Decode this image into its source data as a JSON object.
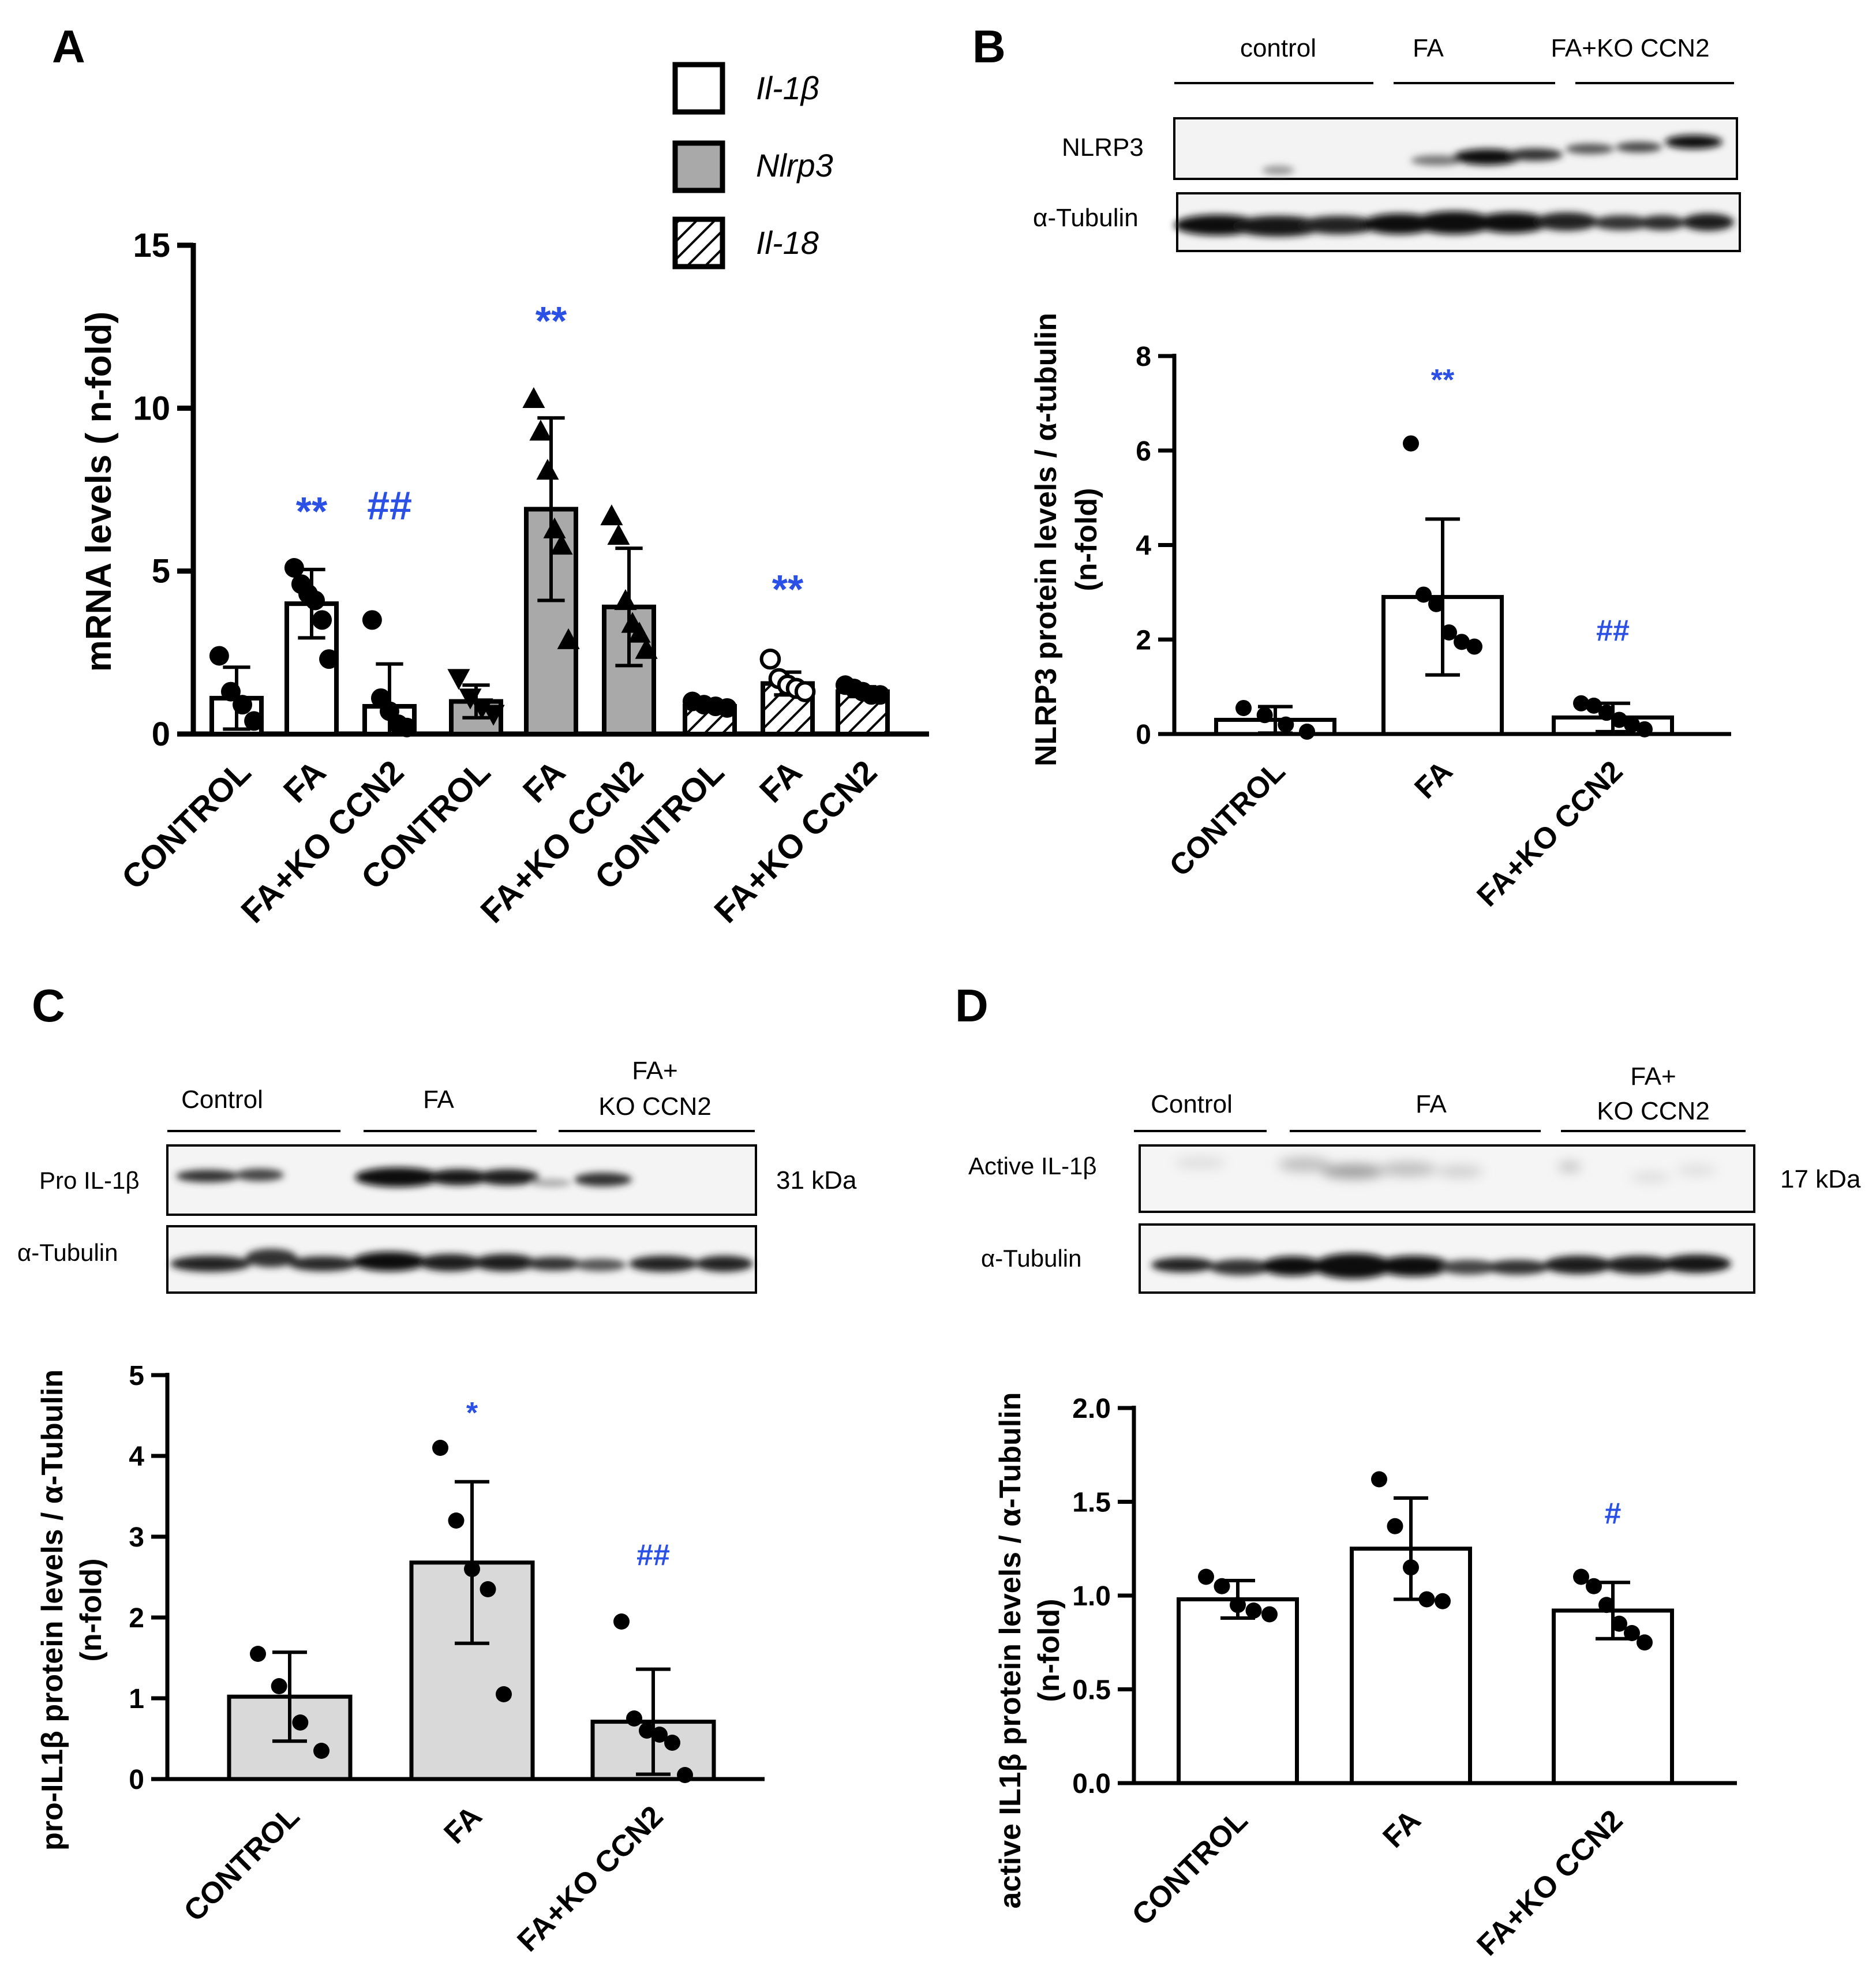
{
  "chart_data": [
    {
      "panel": "A",
      "type": "bar",
      "ylabel": "mRNA levels ( n-fold)",
      "ylim": [
        0,
        15
      ],
      "yticks": [
        "0",
        "5",
        "10",
        "15"
      ],
      "legend": [
        {
          "name": "Il-1β",
          "fill": "white"
        },
        {
          "name": "Nlrp3",
          "fill": "gray"
        },
        {
          "name": "Il-18",
          "fill": "hatched"
        }
      ],
      "categories": [
        "CONTROL",
        "FA",
        "FA+KO CCN2",
        "CONTROL",
        "FA",
        "FA+KO CCN2",
        "CONTROL",
        "FA",
        "FA+KO CCN2"
      ],
      "values": [
        1.1,
        4.0,
        0.85,
        1.0,
        6.9,
        3.9,
        0.85,
        1.55,
        1.3
      ],
      "errors": [
        0.95,
        1.05,
        1.3,
        0.5,
        2.8,
        1.8,
        0.1,
        0.35,
        0.15
      ],
      "points": [
        [
          2.4,
          1.3,
          0.9,
          0.4
        ],
        [
          5.1,
          4.6,
          4.3,
          4.1,
          3.5,
          2.3
        ],
        [
          3.5,
          1.1,
          0.7,
          0.3,
          0.2
        ],
        [
          1.7,
          1.1,
          0.8,
          0.6
        ],
        [
          10.3,
          9.3,
          8.1,
          6.3,
          5.8,
          2.9
        ],
        [
          6.7,
          6.1,
          4.1,
          3.4,
          3.1,
          2.6
        ],
        [
          1.0,
          0.9,
          0.85,
          0.8
        ],
        [
          2.3,
          1.7,
          1.5,
          1.4,
          1.3
        ],
        [
          1.5,
          1.4,
          1.3,
          1.2,
          1.2
        ]
      ],
      "series_of_bar": [
        0,
        0,
        0,
        1,
        1,
        1,
        2,
        2,
        2
      ],
      "marker_of_bar": [
        "circle",
        "circle",
        "circle",
        "triangle-down",
        "triangle",
        "triangle",
        "circle",
        "circle-open",
        "circle"
      ],
      "annotations": [
        {
          "bar": 1,
          "text": "**"
        },
        {
          "bar": 2,
          "text": "##"
        },
        {
          "bar": 4,
          "text": "**"
        },
        {
          "bar": 7,
          "text": "**"
        }
      ]
    },
    {
      "panel": "B",
      "type": "bar",
      "ylabel_line1": "NLRP3 protein levels / α-tubulin",
      "ylabel_line2": "(n-fold)",
      "ylim": [
        0,
        8
      ],
      "yticks": [
        "0",
        "2",
        "4",
        "6",
        "8"
      ],
      "categories": [
        "CONTROL",
        "FA",
        "FA+KO CCN2"
      ],
      "values": [
        0.3,
        2.9,
        0.35
      ],
      "errors": [
        0.28,
        1.65,
        0.3
      ],
      "points": [
        [
          0.55,
          0.4,
          0.2,
          0.05
        ],
        [
          6.15,
          2.95,
          2.75,
          2.15,
          1.95,
          1.85
        ],
        [
          0.65,
          0.6,
          0.45,
          0.3,
          0.2,
          0.1
        ]
      ],
      "annotations": [
        {
          "bar": 1,
          "text": "**"
        },
        {
          "bar": 2,
          "text": "##"
        }
      ]
    },
    {
      "panel": "C",
      "type": "bar",
      "ylabel_line1": "pro-IL1β protein levels / α-Tubulin",
      "ylabel_line2": "(n-fold)",
      "ylim": [
        0,
        5
      ],
      "yticks": [
        "0",
        "1",
        "2",
        "3",
        "4",
        "5"
      ],
      "categories": [
        "CONTROL",
        "FA",
        "FA+KO CCN2"
      ],
      "values": [
        1.02,
        2.68,
        0.71
      ],
      "errors": [
        0.55,
        1.0,
        0.65
      ],
      "points": [
        [
          1.55,
          1.15,
          0.7,
          0.35
        ],
        [
          4.1,
          3.2,
          2.6,
          2.35,
          1.05
        ],
        [
          1.95,
          0.75,
          0.6,
          0.55,
          0.45,
          0.05
        ]
      ],
      "annotations": [
        {
          "bar": 1,
          "text": "*"
        },
        {
          "bar": 2,
          "text": "##"
        }
      ]
    },
    {
      "panel": "D",
      "type": "bar",
      "ylabel_line1": "active IL1β protein levels / α-Tubulin",
      "ylabel_line2": "(n-fold)",
      "ylim": [
        0,
        2.0
      ],
      "yticks": [
        "0.0",
        "0.5",
        "1.0",
        "1.5",
        "2.0"
      ],
      "categories": [
        "CONTROL",
        "FA",
        "FA+KO CCN2"
      ],
      "values": [
        0.98,
        1.25,
        0.92
      ],
      "errors": [
        0.1,
        0.27,
        0.15
      ],
      "points": [
        [
          1.1,
          1.05,
          0.95,
          0.92,
          0.9
        ],
        [
          1.62,
          1.37,
          1.15,
          0.98,
          0.97
        ],
        [
          1.1,
          1.05,
          0.95,
          0.85,
          0.8,
          0.75
        ]
      ],
      "annotations": [
        {
          "bar": 2,
          "text": "#"
        }
      ]
    }
  ],
  "panel_labels": {
    "A": "A",
    "B": "B",
    "C": "C",
    "D": "D"
  },
  "blots": {
    "B": {
      "groups": [
        "control",
        "FA",
        "FA+KO CCN2"
      ],
      "rows": [
        "NLRP3",
        "α-Tubulin"
      ]
    },
    "C": {
      "groups": [
        "Control",
        "FA",
        "FA+",
        "KO CCN2"
      ],
      "rows": [
        "Pro IL-1β",
        "α-Tubulin"
      ],
      "kda": "31 kDa"
    },
    "D": {
      "groups": [
        "Control",
        "FA",
        "FA+",
        "KO CCN2"
      ],
      "rows": [
        "Active IL-1β",
        "α-Tubulin"
      ],
      "kda": "17 kDa"
    }
  }
}
